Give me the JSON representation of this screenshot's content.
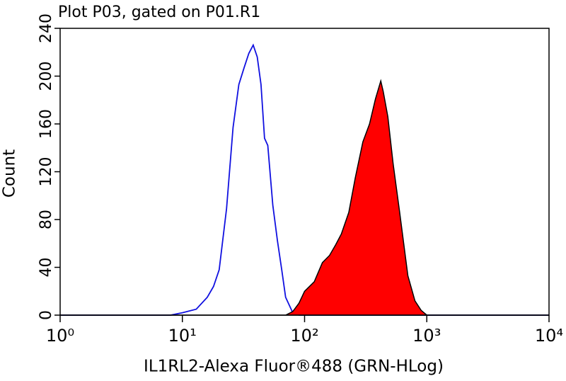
{
  "chart_data": {
    "type": "line",
    "title": "Plot P03, gated on P01.R1",
    "x_label": "IL1RL2-Alexa Fluor®488 (GRN-HLog)",
    "y_label": "Count",
    "x_scale": "log",
    "xlim": [
      1,
      10000
    ],
    "xticks": [
      {
        "value": 1,
        "label": "10⁰"
      },
      {
        "value": 10,
        "label": "10¹"
      },
      {
        "value": 100,
        "label": "10²"
      },
      {
        "value": 1000,
        "label": "10³"
      },
      {
        "value": 10000,
        "label": "10⁴"
      }
    ],
    "ylim": [
      0,
      240
    ],
    "yticks": [
      0,
      40,
      80,
      120,
      160,
      200,
      240
    ],
    "series": [
      {
        "color": "#1010e0",
        "fill": false,
        "x": [
          1,
          8,
          10,
          13,
          16,
          18,
          20,
          23,
          26,
          29,
          32,
          35,
          38,
          41,
          44,
          47,
          50,
          55,
          60,
          65,
          70,
          80,
          90,
          10000
        ],
        "values": [
          0,
          0,
          2,
          5,
          15,
          24,
          38,
          89,
          157,
          193,
          207,
          219,
          226,
          216,
          193,
          148,
          142,
          92,
          62,
          38,
          15,
          2,
          0,
          0
        ]
      },
      {
        "color": "#ff0000",
        "fill": true,
        "x": [
          1,
          70,
          80,
          90,
          100,
          120,
          140,
          160,
          180,
          200,
          230,
          260,
          300,
          340,
          380,
          420,
          440,
          480,
          530,
          600,
          700,
          800,
          900,
          1000,
          10000
        ],
        "values": [
          0,
          0,
          3,
          10,
          20,
          28,
          44,
          50,
          59,
          68,
          86,
          115,
          145,
          160,
          181,
          196,
          187,
          166,
          127,
          86,
          33,
          12,
          4,
          0,
          0
        ]
      }
    ]
  }
}
